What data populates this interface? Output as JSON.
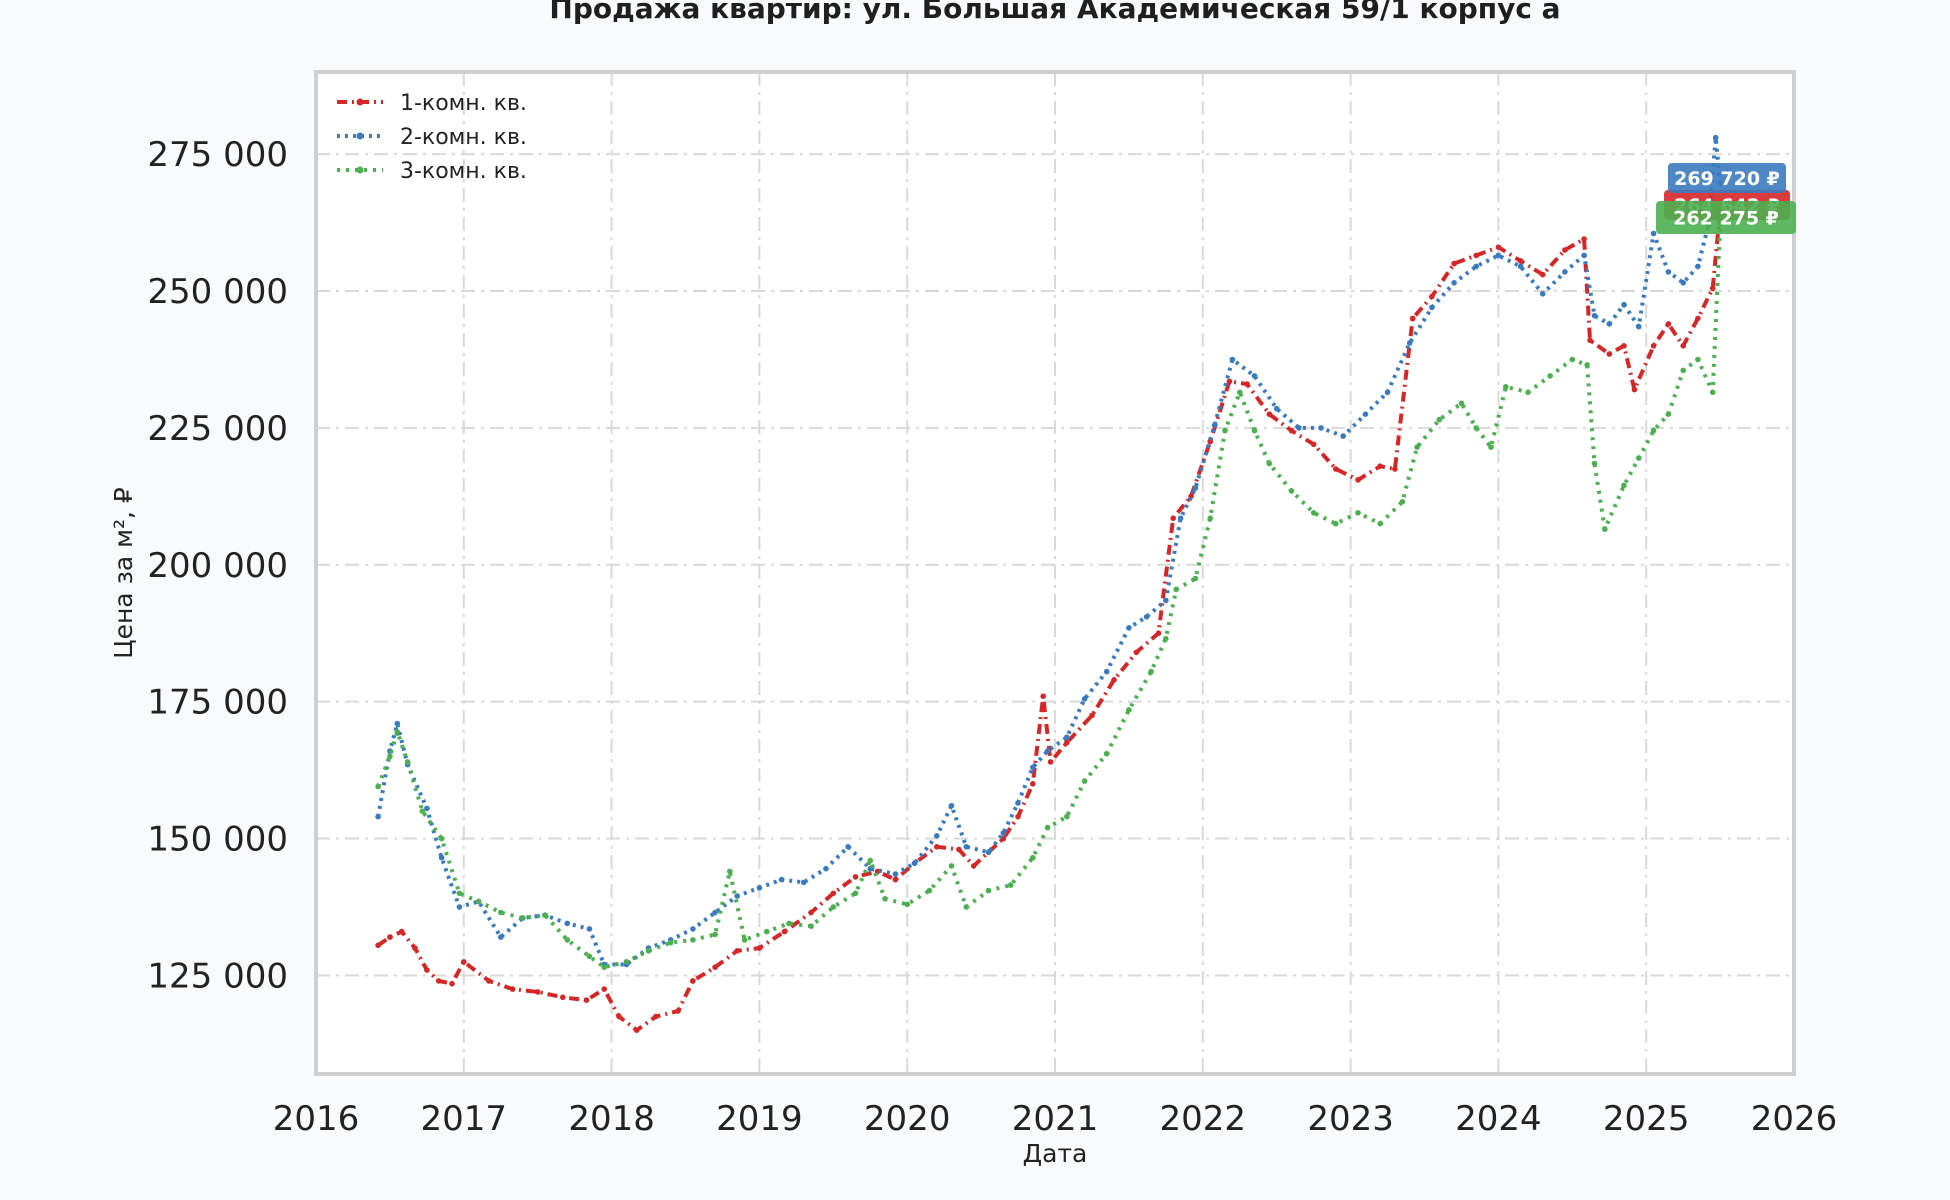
{
  "chart_data": {
    "type": "line",
    "title": "Продажа квартир: ул. Большая Академическая 59/1 корпус а",
    "xlabel": "Дата",
    "ylabel": "Цена за м², ₽",
    "xlim": [
      2016,
      2026
    ],
    "ylim": [
      107000,
      290000
    ],
    "grid": true,
    "legend_position": "top-left",
    "x_ticks": [
      "2016",
      "2017",
      "2018",
      "2019",
      "2020",
      "2021",
      "2022",
      "2023",
      "2024",
      "2025",
      "2026"
    ],
    "y_ticks": [
      "125 000",
      "150 000",
      "175 000",
      "200 000",
      "225 000",
      "250 000",
      "275 000"
    ],
    "series": [
      {
        "name": "1-комн. кв.",
        "color": "#d62728",
        "last_label": "264 642 ₽",
        "points": [
          [
            2016.42,
            130500
          ],
          [
            2016.5,
            132000
          ],
          [
            2016.58,
            133000
          ],
          [
            2016.67,
            130000
          ],
          [
            2016.75,
            126000
          ],
          [
            2016.83,
            124000
          ],
          [
            2016.92,
            123500
          ],
          [
            2017.0,
            127500
          ],
          [
            2017.17,
            124000
          ],
          [
            2017.33,
            122500
          ],
          [
            2017.5,
            122000
          ],
          [
            2017.67,
            121000
          ],
          [
            2017.83,
            120500
          ],
          [
            2017.95,
            122500
          ],
          [
            2018.05,
            117500
          ],
          [
            2018.17,
            115000
          ],
          [
            2018.3,
            117500
          ],
          [
            2018.45,
            118500
          ],
          [
            2018.55,
            124000
          ],
          [
            2018.7,
            126500
          ],
          [
            2018.85,
            129500
          ],
          [
            2019.0,
            130000
          ],
          [
            2019.17,
            133000
          ],
          [
            2019.35,
            136500
          ],
          [
            2019.5,
            140000
          ],
          [
            2019.65,
            143000
          ],
          [
            2019.8,
            144000
          ],
          [
            2019.92,
            142500
          ],
          [
            2020.05,
            145500
          ],
          [
            2020.2,
            148500
          ],
          [
            2020.35,
            148000
          ],
          [
            2020.45,
            145000
          ],
          [
            2020.55,
            147500
          ],
          [
            2020.65,
            150000
          ],
          [
            2020.75,
            154000
          ],
          [
            2020.85,
            160000
          ],
          [
            2020.92,
            176000
          ],
          [
            2020.97,
            164000
          ],
          [
            2021.08,
            167500
          ],
          [
            2021.25,
            172500
          ],
          [
            2021.4,
            179000
          ],
          [
            2021.55,
            184000
          ],
          [
            2021.7,
            187500
          ],
          [
            2021.8,
            208500
          ],
          [
            2021.92,
            212500
          ],
          [
            2022.05,
            222500
          ],
          [
            2022.18,
            233500
          ],
          [
            2022.3,
            233000
          ],
          [
            2022.45,
            227500
          ],
          [
            2022.6,
            224500
          ],
          [
            2022.75,
            222000
          ],
          [
            2022.9,
            217500
          ],
          [
            2023.05,
            215500
          ],
          [
            2023.2,
            218000
          ],
          [
            2023.3,
            217500
          ],
          [
            2023.42,
            245000
          ],
          [
            2023.55,
            249000
          ],
          [
            2023.7,
            255000
          ],
          [
            2023.85,
            256500
          ],
          [
            2024.0,
            258000
          ],
          [
            2024.15,
            255500
          ],
          [
            2024.3,
            253000
          ],
          [
            2024.45,
            257500
          ],
          [
            2024.58,
            259500
          ],
          [
            2024.62,
            241000
          ],
          [
            2024.75,
            238500
          ],
          [
            2024.85,
            240000
          ],
          [
            2024.92,
            232000
          ],
          [
            2025.05,
            240000
          ],
          [
            2025.15,
            244000
          ],
          [
            2025.25,
            240000
          ],
          [
            2025.35,
            245000
          ],
          [
            2025.45,
            250500
          ],
          [
            2025.5,
            264642
          ]
        ]
      },
      {
        "name": "2-комн. кв.",
        "color": "#3a7bbf",
        "last_label": "269 720 ₽",
        "points": [
          [
            2016.42,
            154000
          ],
          [
            2016.5,
            166000
          ],
          [
            2016.55,
            171000
          ],
          [
            2016.62,
            163500
          ],
          [
            2016.75,
            155500
          ],
          [
            2016.85,
            146500
          ],
          [
            2016.97,
            137500
          ],
          [
            2017.1,
            138500
          ],
          [
            2017.25,
            132000
          ],
          [
            2017.4,
            135500
          ],
          [
            2017.55,
            136000
          ],
          [
            2017.7,
            134500
          ],
          [
            2017.85,
            133500
          ],
          [
            2017.95,
            127000
          ],
          [
            2018.1,
            127000
          ],
          [
            2018.25,
            130000
          ],
          [
            2018.4,
            131500
          ],
          [
            2018.55,
            133500
          ],
          [
            2018.7,
            136500
          ],
          [
            2018.85,
            139500
          ],
          [
            2019.0,
            141000
          ],
          [
            2019.15,
            142500
          ],
          [
            2019.3,
            142000
          ],
          [
            2019.45,
            144500
          ],
          [
            2019.6,
            148500
          ],
          [
            2019.75,
            144500
          ],
          [
            2019.92,
            143500
          ],
          [
            2020.05,
            145500
          ],
          [
            2020.2,
            150500
          ],
          [
            2020.3,
            156000
          ],
          [
            2020.4,
            148500
          ],
          [
            2020.55,
            147500
          ],
          [
            2020.65,
            151000
          ],
          [
            2020.75,
            156500
          ],
          [
            2020.85,
            163000
          ],
          [
            2020.95,
            166000
          ],
          [
            2021.08,
            168500
          ],
          [
            2021.2,
            175500
          ],
          [
            2021.35,
            180500
          ],
          [
            2021.5,
            188500
          ],
          [
            2021.62,
            190500
          ],
          [
            2021.75,
            193500
          ],
          [
            2021.85,
            208500
          ],
          [
            2021.95,
            214000
          ],
          [
            2022.08,
            225500
          ],
          [
            2022.2,
            237500
          ],
          [
            2022.35,
            234500
          ],
          [
            2022.5,
            228500
          ],
          [
            2022.65,
            225000
          ],
          [
            2022.8,
            225000
          ],
          [
            2022.95,
            223500
          ],
          [
            2023.1,
            227500
          ],
          [
            2023.25,
            231500
          ],
          [
            2023.4,
            240500
          ],
          [
            2023.55,
            247000
          ],
          [
            2023.7,
            251500
          ],
          [
            2023.85,
            254500
          ],
          [
            2024.0,
            256500
          ],
          [
            2024.15,
            254500
          ],
          [
            2024.3,
            249500
          ],
          [
            2024.45,
            253500
          ],
          [
            2024.58,
            256500
          ],
          [
            2024.65,
            245500
          ],
          [
            2024.75,
            244000
          ],
          [
            2024.85,
            247500
          ],
          [
            2024.95,
            243500
          ],
          [
            2025.05,
            260500
          ],
          [
            2025.15,
            253500
          ],
          [
            2025.25,
            251500
          ],
          [
            2025.35,
            254500
          ],
          [
            2025.42,
            262000
          ],
          [
            2025.47,
            278000
          ],
          [
            2025.5,
            269720
          ]
        ]
      },
      {
        "name": "3-комн. кв.",
        "color": "#4caf50",
        "last_label": "262 275 ₽",
        "points": [
          [
            2016.42,
            159500
          ],
          [
            2016.5,
            165000
          ],
          [
            2016.55,
            169500
          ],
          [
            2016.62,
            164000
          ],
          [
            2016.72,
            155000
          ],
          [
            2016.85,
            150000
          ],
          [
            2016.97,
            140000
          ],
          [
            2017.1,
            138500
          ],
          [
            2017.25,
            136500
          ],
          [
            2017.4,
            135500
          ],
          [
            2017.55,
            136000
          ],
          [
            2017.7,
            131500
          ],
          [
            2017.85,
            128500
          ],
          [
            2017.95,
            126500
          ],
          [
            2018.1,
            127500
          ],
          [
            2018.25,
            129500
          ],
          [
            2018.4,
            131000
          ],
          [
            2018.55,
            131500
          ],
          [
            2018.7,
            132500
          ],
          [
            2018.8,
            144000
          ],
          [
            2018.9,
            131500
          ],
          [
            2019.05,
            133000
          ],
          [
            2019.2,
            134500
          ],
          [
            2019.35,
            134000
          ],
          [
            2019.5,
            137500
          ],
          [
            2019.65,
            140000
          ],
          [
            2019.75,
            146000
          ],
          [
            2019.85,
            139000
          ],
          [
            2020.0,
            138000
          ],
          [
            2020.15,
            140500
          ],
          [
            2020.3,
            145000
          ],
          [
            2020.4,
            137500
          ],
          [
            2020.55,
            140500
          ],
          [
            2020.7,
            141500
          ],
          [
            2020.85,
            146500
          ],
          [
            2020.95,
            152000
          ],
          [
            2021.08,
            154000
          ],
          [
            2021.2,
            160500
          ],
          [
            2021.35,
            165500
          ],
          [
            2021.5,
            173500
          ],
          [
            2021.65,
            180500
          ],
          [
            2021.75,
            186500
          ],
          [
            2021.82,
            195500
          ],
          [
            2021.95,
            197500
          ],
          [
            2022.05,
            208500
          ],
          [
            2022.15,
            224500
          ],
          [
            2022.25,
            231500
          ],
          [
            2022.35,
            224500
          ],
          [
            2022.45,
            218500
          ],
          [
            2022.6,
            213500
          ],
          [
            2022.75,
            209500
          ],
          [
            2022.9,
            207500
          ],
          [
            2023.05,
            209500
          ],
          [
            2023.2,
            207500
          ],
          [
            2023.35,
            211500
          ],
          [
            2023.45,
            221500
          ],
          [
            2023.6,
            226500
          ],
          [
            2023.75,
            229500
          ],
          [
            2023.85,
            225000
          ],
          [
            2023.95,
            221500
          ],
          [
            2024.05,
            232500
          ],
          [
            2024.2,
            231500
          ],
          [
            2024.35,
            234500
          ],
          [
            2024.5,
            237500
          ],
          [
            2024.6,
            236500
          ],
          [
            2024.65,
            218500
          ],
          [
            2024.72,
            206500
          ],
          [
            2024.85,
            214500
          ],
          [
            2024.95,
            219500
          ],
          [
            2025.05,
            224500
          ],
          [
            2025.15,
            227500
          ],
          [
            2025.25,
            235500
          ],
          [
            2025.35,
            237500
          ],
          [
            2025.45,
            231500
          ],
          [
            2025.5,
            262275
          ]
        ]
      }
    ]
  }
}
